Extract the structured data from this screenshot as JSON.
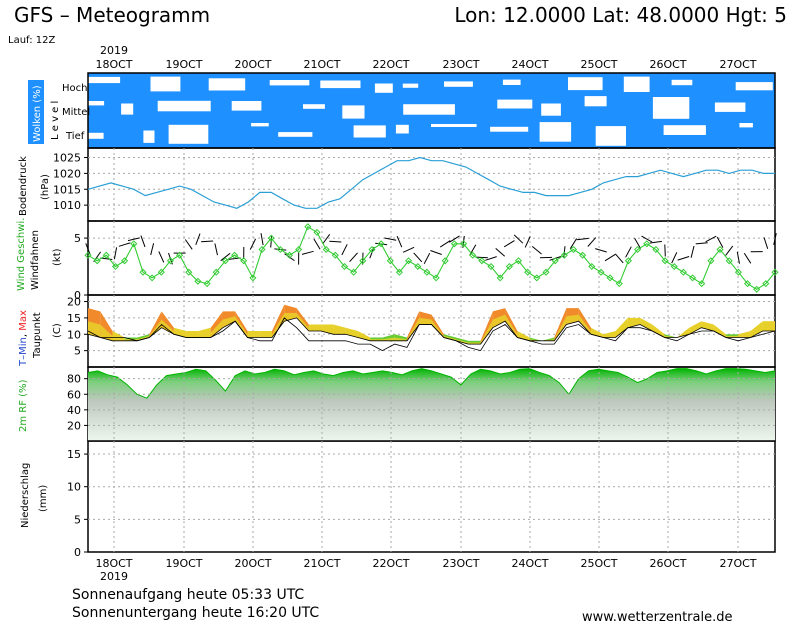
{
  "header": {
    "title": "GFS – Meteogramm",
    "coords": "Lon: 12.0000  Lat: 48.0000  Hgt: 5",
    "run": "Lauf: 12Z"
  },
  "footer": {
    "sunrise": "Sonnenaufgang heute 05:33 UTC",
    "sunset": "Sonnenuntergang heute 16:20 UTC",
    "url": "www.wetterzentrale.de"
  },
  "colors": {
    "cloud_bg": "#1e90ff",
    "pressure_line": "#2a9fd6",
    "wind_line": "#33cc33",
    "temp_orange": "#f08a2a",
    "temp_yellow": "#e8d02a",
    "temp_green": "#66cc33",
    "dew_blue": "#2244cc",
    "rh_green": "#00c800",
    "rh_gradient_bottom": "#e8f5e8"
  },
  "chart_data": {
    "type": "line",
    "x_range": [
      "2019-10-17T12:00Z",
      "2019-10-27T12:00Z"
    ],
    "x_ticks": [
      "18OCT",
      "19OCT",
      "20OCT",
      "21OCT",
      "22OCT",
      "23OCT",
      "24OCT",
      "25OCT",
      "26OCT",
      "27OCT"
    ],
    "top_year": "2019",
    "bottom_year": "2019",
    "panels": {
      "clouds": {
        "label": "Wolken (%)",
        "side_label": "L e v e l",
        "levels": [
          "Hoch",
          "Mittel",
          "Tief"
        ]
      },
      "pressure": {
        "ylabel": "Bodendruck",
        "unit": "(hPa)",
        "ylim": [
          1005,
          1028
        ],
        "yticks": [
          1010,
          1015,
          1020,
          1025
        ],
        "values": [
          1015,
          1016,
          1017,
          1016,
          1015,
          1013,
          1014,
          1015,
          1016,
          1015,
          1013,
          1011,
          1010,
          1009,
          1011,
          1014,
          1014,
          1012,
          1010,
          1009,
          1009,
          1011,
          1012,
          1015,
          1018,
          1020,
          1022,
          1024,
          1024,
          1025,
          1024,
          1024,
          1023,
          1022,
          1020,
          1018,
          1016,
          1015,
          1014,
          1014,
          1013,
          1013,
          1013,
          1014,
          1015,
          1017,
          1018,
          1019,
          1019,
          1020,
          1021,
          1020,
          1019,
          1020,
          1021,
          1021,
          1020,
          1021,
          1021,
          1020,
          1020
        ]
      },
      "wind": {
        "ylabel_top": "Wind Geschwi.",
        "ylabel": "Windfahnen",
        "unit": "(kt)",
        "ylim": [
          0,
          6.5
        ],
        "yticks": [
          0,
          5
        ],
        "values": [
          3.5,
          3,
          3.5,
          2.5,
          3,
          4.5,
          2,
          1.5,
          2,
          3,
          3.5,
          2,
          1.2,
          1,
          2,
          3,
          3.5,
          3,
          1.5,
          4,
          5,
          4,
          3.5,
          4,
          6,
          5.5,
          4,
          3.5,
          2.5,
          2,
          3,
          4,
          4.5,
          3,
          2,
          3,
          2.5,
          2,
          1.5,
          3,
          4.5,
          4.5,
          3.5,
          3,
          2.5,
          1.5,
          2.5,
          3,
          2,
          1.5,
          2,
          3,
          3.5,
          4,
          3.5,
          2.5,
          2,
          1.5,
          1,
          3,
          4,
          4.5,
          4,
          3,
          2.5,
          2,
          1.5,
          1,
          3,
          4,
          3,
          2,
          1,
          0.5,
          1,
          2
        ]
      },
      "temperature": {
        "ylabel_main": "T–Min, Max",
        "ylabel_tmin": "T–Min",
        "ylabel_sep": ", ",
        "ylabel_tmax": "Max",
        "ylabel2": "Taupunkt",
        "unit": "(C)",
        "ylim": [
          0,
          22
        ],
        "yticks": [
          5,
          10,
          15,
          20
        ],
        "tmax": [
          18,
          17,
          11,
          9,
          9,
          10,
          17,
          12,
          11,
          11,
          12,
          17,
          17,
          11,
          11,
          11,
          19,
          18,
          13,
          13,
          13,
          12,
          11,
          9,
          9,
          10,
          9,
          17,
          16,
          10,
          9,
          8,
          8,
          17,
          18,
          11,
          9,
          8,
          9,
          18,
          18,
          12,
          10,
          11,
          15,
          15,
          13,
          10,
          9,
          12,
          14,
          13,
          10,
          10,
          11,
          14,
          14
        ],
        "tmin": [
          10,
          9,
          8,
          8,
          8,
          9,
          12,
          10,
          9,
          9,
          9,
          12,
          14,
          9,
          9,
          9,
          14,
          15,
          11,
          11,
          10,
          10,
          9,
          8,
          8,
          8,
          8,
          13,
          13,
          9,
          8,
          7,
          7,
          12,
          14,
          9,
          8,
          8,
          8,
          13,
          14,
          10,
          9,
          9,
          12,
          13,
          11,
          9,
          9,
          10,
          12,
          11,
          9,
          9,
          9,
          11,
          11
        ],
        "dewpoint": [
          11,
          9,
          9,
          9,
          8,
          9,
          13,
          10,
          9,
          9,
          9,
          11,
          14,
          9,
          8,
          8,
          15,
          12,
          8,
          8,
          8,
          8,
          7,
          7,
          5,
          7,
          6,
          13,
          13,
          9,
          8,
          6,
          5,
          11,
          13,
          9,
          8,
          7,
          7,
          12,
          13,
          10,
          9,
          8,
          12,
          12,
          11,
          9,
          8,
          10,
          11,
          11,
          9,
          8,
          9,
          10,
          11
        ]
      },
      "rh": {
        "ylabel": "2m RF (%)",
        "ylim": [
          0,
          95
        ],
        "yticks": [
          20,
          40,
          60,
          80
        ],
        "values": [
          88,
          90,
          85,
          82,
          72,
          60,
          55,
          72,
          84,
          86,
          88,
          92,
          90,
          78,
          64,
          84,
          90,
          86,
          88,
          92,
          90,
          85,
          88,
          90,
          86,
          84,
          88,
          90,
          86,
          88,
          90,
          88,
          85,
          90,
          93,
          90,
          86,
          82,
          72,
          86,
          92,
          90,
          86,
          88,
          92,
          93,
          88,
          84,
          75,
          60,
          80,
          90,
          92,
          90,
          88,
          82,
          75,
          80,
          88,
          90,
          93,
          93,
          90,
          86,
          90,
          93,
          93,
          92,
          90,
          88,
          90
        ]
      },
      "precip": {
        "ylabel": "Niederschlag",
        "unit": "(mm)",
        "ylim": [
          0,
          17
        ],
        "yticks": [
          0,
          5,
          10,
          15
        ],
        "values": []
      }
    }
  }
}
